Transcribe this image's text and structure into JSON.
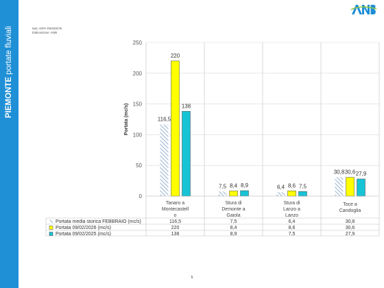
{
  "sidebar": {
    "title_bold": "PIEMONTE",
    "title_rest": " portate fluviali",
    "color": "#1f8fd6"
  },
  "logo": {
    "text": "ANBI",
    "colors": [
      "#1f8fd6",
      "#8cc63f"
    ]
  },
  "source": {
    "line1": "Dati: ARPA PIEMONTE",
    "line2": "Elaborazione: ANBI"
  },
  "page_number": "5",
  "chart_data": {
    "type": "bar",
    "ylabel": "Portata (mc/s)",
    "ylim": [
      0,
      250
    ],
    "yticks": [
      0,
      50,
      100,
      150,
      200,
      250
    ],
    "grid": true,
    "legend_placement": "table-below",
    "categories": [
      [
        "Tanaro a",
        "Montecastell",
        "o"
      ],
      [
        "Stura di",
        "Demonte a",
        "Gaiola"
      ],
      [
        "Stura di",
        "Lanzo a",
        "Lanzo"
      ],
      [
        "Toce a",
        "Candoglia"
      ]
    ],
    "series": [
      {
        "name": "Portata media storica FEBBRAIO (mc/s)",
        "values": [
          116.5,
          7.5,
          6.4,
          30.8
        ],
        "labels": [
          "116,5",
          "7,5",
          "6,4",
          "30,8"
        ],
        "style": "hatched",
        "color": "#9db5d1"
      },
      {
        "name": "Portata 09/02/2026 (mc/s)",
        "values": [
          220,
          8.4,
          8.6,
          30.6
        ],
        "labels": [
          "220",
          "8,4",
          "8,6",
          "30,6"
        ],
        "style": "solid",
        "color": "#ffff00"
      },
      {
        "name": "Portata 09/02/2025 (mc/s)",
        "values": [
          138,
          8.9,
          7.5,
          27.9
        ],
        "labels": [
          "138",
          "8,9",
          "7,5",
          "27,9"
        ],
        "style": "solid",
        "color": "#17c4d6"
      }
    ]
  }
}
